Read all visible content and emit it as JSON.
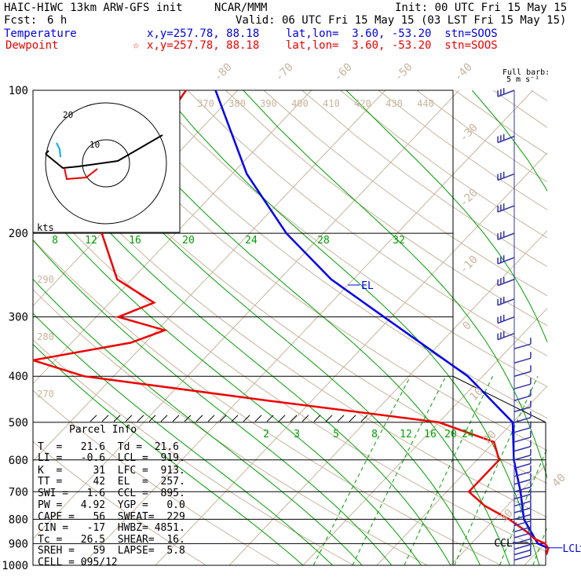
{
  "header": {
    "model": "HAIC-HIWC 13km ARW-GFS init",
    "org": "NCAR/MMM",
    "init": "Init: 00 UTC Fri 15 May 15",
    "fcst_label": "Fcst:",
    "fcst_value": "6 h",
    "valid": "Valid: 06 UTC Fri 15 May 15 (03 LST Fri 15 May 15)",
    "temp_label": "Temperature",
    "temp_info": "x,y=257.78, 88.18    lat,lon=  3.60, -53.20  stn=SOOS",
    "dew_label": "Dewpoint",
    "dew_star": "☆",
    "dew_info": "x,y=257.78, 88.18    lat,lon=  3.60, -53.20  stn=SOOS"
  },
  "barb_legend": {
    "line1": "Full barb:",
    "line2": "5 m s⁻¹"
  },
  "colors": {
    "temperature": "#0000ee",
    "dewpoint": "#ee0000",
    "isotherm": "#c8b49b",
    "mixing": "#00a000",
    "moist": "#00a000",
    "hodo_black": "#000000",
    "hodo_cyan": "#00aaee",
    "hodo_red": "#ee0000",
    "barb": "#3333aa"
  },
  "chart_data": {
    "type": "skew-t",
    "pressure_axis": [
      "100",
      "200",
      "300",
      "400",
      "500",
      "600",
      "700",
      "800",
      "900",
      "1000"
    ],
    "temperature_labels": [
      "-80",
      "-70",
      "-60",
      "-50",
      "-40",
      "-30",
      "-20",
      "-10",
      "0",
      "10",
      "20",
      "30",
      "40"
    ],
    "theta_labels_top": [
      "370",
      "380",
      "390",
      "400",
      "410",
      "420",
      "430",
      "440"
    ],
    "theta_labels_left": [
      "290",
      "280",
      "270"
    ],
    "mixing_labels_upper": [
      "8",
      "12",
      "16",
      "20",
      "24",
      "28",
      "32"
    ],
    "mixing_labels_lower": [
      "2",
      "3",
      "5",
      "8",
      "12",
      "16",
      "20",
      "24"
    ],
    "temperature_profile": {
      "name": "Temperature",
      "pressure": [
        100,
        150,
        200,
        250,
        300,
        400,
        500,
        600,
        700,
        800,
        900,
        920,
        950
      ],
      "temperature": [
        -83,
        -68,
        -55,
        -43,
        -31,
        -12,
        0,
        5,
        10,
        14,
        19,
        21,
        21.6
      ]
    },
    "dewpoint_profile": {
      "name": "Dewpoint",
      "pressure": [
        100,
        150,
        200,
        250,
        280,
        300,
        320,
        340,
        370,
        400,
        450,
        500,
        550,
        600,
        650,
        700,
        750,
        800,
        850,
        880,
        900,
        920,
        950
      ],
      "dewpoint": [
        -87,
        -84,
        -80,
        -72,
        -64,
        -67,
        -59,
        -62,
        -73,
        -64,
        -36,
        -10,
        0,
        3,
        3,
        3,
        7,
        12,
        16,
        18,
        20,
        21,
        21.6
      ]
    },
    "markers": [
      "EL",
      "LCL",
      "LFC",
      "CCL"
    ],
    "hodograph_rings": [
      "10",
      "20"
    ],
    "hodograph_unit": "kts"
  },
  "parcel": {
    "title": "Parcel Info",
    "lines": [
      "T  =   21.6  Td =  21.6",
      "LI =   -0.6  LCL =  919.",
      "K  =     31  LFC =  913.",
      "TT =     42  EL  =  257.",
      "SWI =   1.6  CCL =  895.",
      "PW =   4.92  YGP =   0.0",
      "CAPE =   56  SWEAT=  229",
      "CIN =   -17  HWBZ= 4851.",
      "Tc =   26.5  SHEAR=  16.",
      "SREH =   59  LAPSE=  5.8",
      "CELL = 095/12"
    ]
  }
}
